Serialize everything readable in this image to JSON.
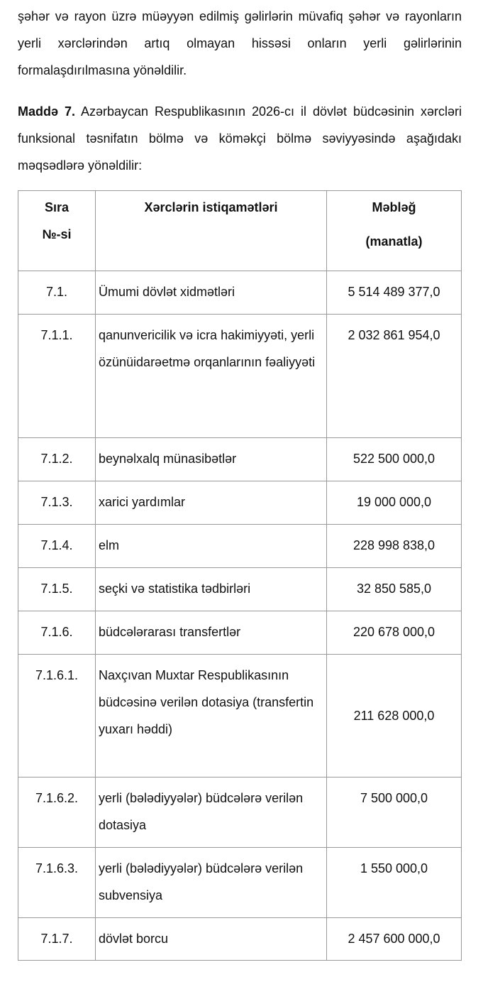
{
  "paragraph1": "şəhər və rayon üzrə müəyyən edilmiş gəlirlərin müvafiq şəhər və rayonların yerli xərclərindən artıq olmayan hissəsi onların yerli gəlirlərinin formalaşdırılmasına yönəldilir.",
  "article": {
    "label": "Maddə 7.",
    "text": " Azərbaycan Respublikasının 2026-cı il dövlət büdcəsinin xərcləri funksional təsnifatın bölmə və köməkçi bölmə səviyyəsində aşağıdakı məqsədlərə yönəldilir:"
  },
  "table": {
    "headers": {
      "col1_line1": "Sıra",
      "col1_line2": "№-si",
      "col2": "Xərclərin istiqamətləri",
      "col3_line1": "Məbləğ",
      "col3_line2": "(manatla)"
    },
    "rows": [
      {
        "no": "7.1.",
        "desc": "Ümumi dövlət xidmətləri",
        "amount": "5 514 489 377,0"
      },
      {
        "no": "7.1.1.",
        "desc": "qanunvericilik və icra hakimiyyəti, yerli özünüidarəetmə orqanlarının fəaliyyəti",
        "amount": "2 032 861 954,0"
      },
      {
        "no": "7.1.2.",
        "desc": "beynəlxalq münasibətlər",
        "amount": "522 500 000,0"
      },
      {
        "no": "7.1.3.",
        "desc": "xarici yardımlar",
        "amount": "19 000 000,0"
      },
      {
        "no": "7.1.4.",
        "desc": "elm",
        "amount": "228 998 838,0"
      },
      {
        "no": "7.1.5.",
        "desc": "seçki və statistika tədbirləri",
        "amount": "32 850 585,0"
      },
      {
        "no": "7.1.6.",
        "desc": "büdcələrarası transfertlər",
        "amount": "220 678 000,0"
      },
      {
        "no": "7.1.6.1.",
        "desc": "Naxçıvan Muxtar Respublikasının büdcəsinə verilən dotasiya (transfertin yuxarı həddi)",
        "amount": "211 628 000,0"
      },
      {
        "no": "7.1.6.2.",
        "desc": "yerli (bələdiyyələr) büdcələrə verilən dotasiya",
        "amount": "7 500 000,0"
      },
      {
        "no": "7.1.6.3.",
        "desc": "yerli (bələdiyyələr) büdcələrə verilən subvensiya",
        "amount": "1 550 000,0"
      },
      {
        "no": "7.1.7.",
        "desc": "dövlət borcu",
        "amount": "2 457 600 000,0"
      }
    ]
  }
}
